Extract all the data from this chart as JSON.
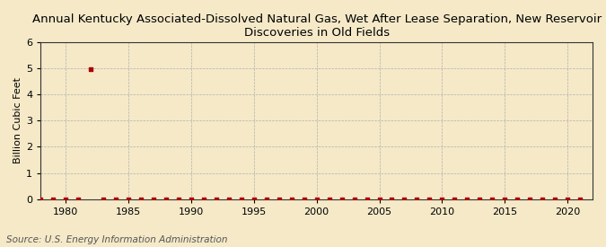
{
  "title": "Annual Kentucky Associated-Dissolved Natural Gas, Wet After Lease Separation, New Reservoir\nDiscoveries in Old Fields",
  "ylabel": "Billion Cubic Feet",
  "source": "Source: U.S. Energy Information Administration",
  "background_color": "#f5e9c8",
  "plot_background_color": "#f5e9c8",
  "marker_color": "#aa0000",
  "xlim": [
    1978,
    2022
  ],
  "ylim": [
    0,
    6
  ],
  "yticks": [
    0,
    1,
    2,
    3,
    4,
    5,
    6
  ],
  "xticks": [
    1980,
    1985,
    1990,
    1995,
    2000,
    2005,
    2010,
    2015,
    2020
  ],
  "xdata": [
    1978,
    1979,
    1980,
    1981,
    1982,
    1983,
    1984,
    1985,
    1986,
    1987,
    1988,
    1989,
    1990,
    1991,
    1992,
    1993,
    1994,
    1995,
    1996,
    1997,
    1998,
    1999,
    2000,
    2001,
    2002,
    2003,
    2004,
    2005,
    2006,
    2007,
    2008,
    2009,
    2010,
    2011,
    2012,
    2013,
    2014,
    2015,
    2016,
    2017,
    2018,
    2019,
    2020,
    2021
  ],
  "ydata": [
    0.0,
    0.0,
    0.0,
    0.0,
    4.97,
    0.0,
    0.0,
    0.0,
    0.0,
    0.0,
    0.0,
    0.0,
    0.0,
    0.0,
    0.0,
    0.0,
    0.0,
    0.0,
    0.0,
    0.0,
    0.0,
    0.0,
    0.0,
    0.0,
    0.0,
    0.0,
    0.0,
    0.0,
    0.0,
    0.0,
    0.0,
    0.0,
    0.0,
    0.0,
    0.0,
    0.0,
    0.0,
    0.0,
    0.0,
    0.0,
    0.0,
    0.0,
    0.0,
    0.0
  ],
  "title_fontsize": 9.5,
  "label_fontsize": 8,
  "tick_fontsize": 8,
  "source_fontsize": 7.5
}
